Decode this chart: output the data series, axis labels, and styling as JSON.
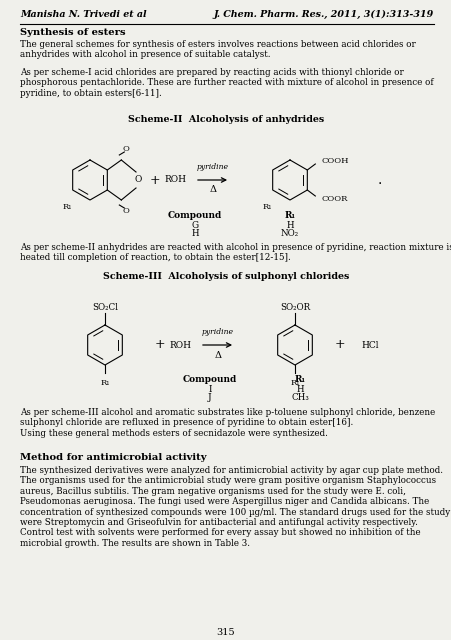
{
  "header_left": "Manisha N. Trivedi et al",
  "header_right": "J. Chem. Pharm. Res., 2011, 3(1):313-319",
  "section1_title": "Synthesis of esters",
  "section1_para1": "The general schemes for synthesis of esters involves reactions between acid chlorides or\nanhydrides with alcohol in presence of suitable catalyst.",
  "section1_para2": "As per scheme-I acid chlorides are prepared by reacting acids with thionyl chloride or\nphosphorous pentachloride. These are further reacted with mixture of alcohol in presence of\npyridine, to obtain esters[6-11].",
  "scheme2_title": "Scheme-II  Alcoholysis of anhydrides",
  "section1_para3": "As per scheme-II anhydrides are reacted with alcohol in presence of pyridine, reaction mixture is\nheated till completion of reaction, to obtain the ester[12-15].",
  "scheme3_title": "Scheme-III  Alcoholysis of sulphonyl chlorides",
  "section1_para4": "As per scheme-III alcohol and aromatic substrates like p-toluene sulphonyl chloride, benzene\nsulphonyl chloride are refluxed in presence of pyridine to obtain ester[16].\nUsing these general methods esters of secnidazole were synthesized.",
  "section2_title": "Method for antimicrobial activity",
  "section2_para1": "The synthesized derivatives were analyzed for antimicrobial activity by agar cup plate method.\nThe organisms used for the antimicrobial study were gram positive organism Staphylococcus\naureus, Bacillus subtilis. The gram negative organisms used for the study were E. coli,\nPseudomonas aeruginosa. The fungi used were Aspergillus niger and Candida albicans. The\nconcentration of synthesized compounds were 100 µg/ml. The standard drugs used for the study\nwere Streptomycin and Griseofulvin for antibacterial and antifungal activity respectively.\nControl test with solvents were performed for every assay but showed no inhibition of the\nmicrobial growth. The results are shown in Table 3.",
  "page_number": "315",
  "bg_color": "#f0f0eb",
  "fig_w": 4.52,
  "fig_h": 6.4,
  "dpi": 100
}
